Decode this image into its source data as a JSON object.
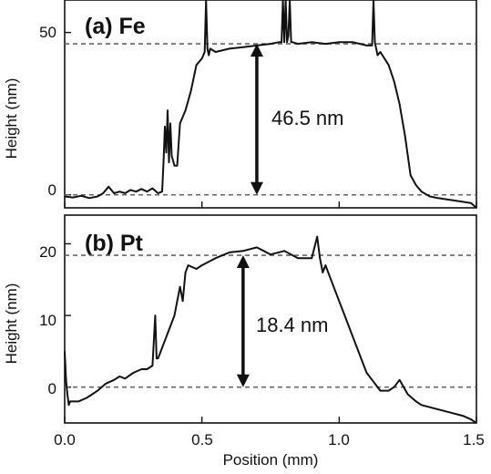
{
  "chart_data": [
    {
      "type": "line",
      "panel_label": "(a) Fe",
      "xlabel": "",
      "ylabel": "Height (nm)",
      "xlim": [
        0.0,
        1.5
      ],
      "ylim": [
        -4,
        60
      ],
      "yticks": [
        0,
        50
      ],
      "ytick_labels": [
        "0",
        "50"
      ],
      "xticks": [
        0.0,
        0.5,
        1.0,
        1.5
      ],
      "grid": false,
      "reference_lines": [
        0,
        46.5
      ],
      "annotation": {
        "text": "46.5 nm",
        "x": 0.7,
        "from": 0,
        "to": 46.5
      },
      "series": [
        {
          "x": [
            0.0,
            0.03,
            0.06,
            0.09,
            0.12,
            0.14,
            0.16,
            0.18,
            0.2,
            0.22,
            0.24,
            0.26,
            0.28,
            0.3,
            0.32,
            0.34,
            0.355,
            0.36,
            0.365,
            0.37,
            0.375,
            0.38,
            0.385,
            0.39,
            0.4,
            0.41,
            0.42,
            0.44,
            0.46,
            0.48,
            0.5,
            0.51,
            0.515,
            0.52,
            0.525,
            0.53,
            0.55,
            0.6,
            0.65,
            0.7,
            0.75,
            0.78,
            0.79,
            0.795,
            0.8,
            0.805,
            0.81,
            0.815,
            0.82,
            0.825,
            0.83,
            0.85,
            0.9,
            0.95,
            1.0,
            1.05,
            1.1,
            1.12,
            1.125,
            1.13,
            1.135,
            1.14,
            1.15,
            1.18,
            1.2,
            1.22,
            1.24,
            1.25,
            1.26,
            1.28,
            1.3,
            1.33,
            1.36,
            1.4,
            1.44,
            1.48,
            1.5
          ],
          "y": [
            -0.5,
            -0.8,
            -0.3,
            -1.0,
            -0.5,
            0.5,
            2.5,
            0.5,
            1.0,
            0.5,
            1.5,
            1.0,
            1.8,
            1.0,
            2.0,
            0.5,
            1.0,
            10,
            21,
            13,
            26,
            10,
            22,
            12,
            9,
            9,
            22,
            26,
            32,
            40,
            42,
            44,
            60,
            45,
            43,
            45,
            44,
            45,
            45.5,
            46,
            46.5,
            47,
            47,
            60,
            47,
            60,
            47,
            49,
            60,
            47,
            47,
            46.5,
            47,
            46.5,
            47,
            47,
            46,
            46,
            60,
            47,
            45,
            43,
            44,
            40,
            35,
            28,
            18,
            12,
            6,
            3,
            1,
            -0.5,
            -1.0,
            -1.5,
            -2,
            -2.5,
            -4
          ]
        }
      ]
    },
    {
      "type": "line",
      "panel_label": "(b) Pt",
      "xlabel": "Position (mm)",
      "ylabel": "Height (nm)",
      "xlim": [
        0.0,
        1.5
      ],
      "ylim": [
        -5,
        24
      ],
      "yticks": [
        0,
        10,
        20
      ],
      "ytick_labels": [
        "0",
        "10",
        "20"
      ],
      "xticks": [
        0.0,
        0.5,
        1.0,
        1.5
      ],
      "xtick_labels": [
        "0.0",
        "0.5",
        "1.0",
        "1.5"
      ],
      "grid": false,
      "reference_lines": [
        0,
        18.4
      ],
      "annotation": {
        "text": "18.4 nm",
        "x": 0.65,
        "from": 0,
        "to": 18.4
      },
      "series": [
        {
          "x": [
            0.0,
            0.005,
            0.01,
            0.015,
            0.02,
            0.05,
            0.08,
            0.1,
            0.12,
            0.15,
            0.18,
            0.2,
            0.22,
            0.25,
            0.28,
            0.3,
            0.32,
            0.33,
            0.335,
            0.34,
            0.35,
            0.37,
            0.4,
            0.42,
            0.43,
            0.44,
            0.45,
            0.48,
            0.5,
            0.55,
            0.6,
            0.65,
            0.7,
            0.75,
            0.8,
            0.85,
            0.9,
            0.92,
            0.93,
            0.94,
            0.95,
            0.97,
            1.0,
            1.02,
            1.05,
            1.08,
            1.1,
            1.12,
            1.15,
            1.18,
            1.2,
            1.22,
            1.25,
            1.28,
            1.3,
            1.35,
            1.4,
            1.45,
            1.48,
            1.5
          ],
          "y": [
            5,
            1,
            -1,
            -2.5,
            -2,
            -2,
            -1.5,
            -1,
            -0.5,
            0.5,
            1,
            1.5,
            1.2,
            2,
            2.5,
            2.5,
            3,
            10,
            4,
            4,
            5,
            7,
            10,
            14,
            12,
            16,
            17,
            16.5,
            17,
            18,
            18.8,
            19,
            19.5,
            18.5,
            19,
            18,
            18,
            21,
            18,
            16,
            17,
            15,
            12,
            10,
            7,
            4,
            2,
            1,
            -0.5,
            -0.5,
            0,
            1,
            -1,
            -2,
            -2.5,
            -3,
            -3.5,
            -4,
            -4.5,
            -5
          ]
        }
      ]
    }
  ]
}
